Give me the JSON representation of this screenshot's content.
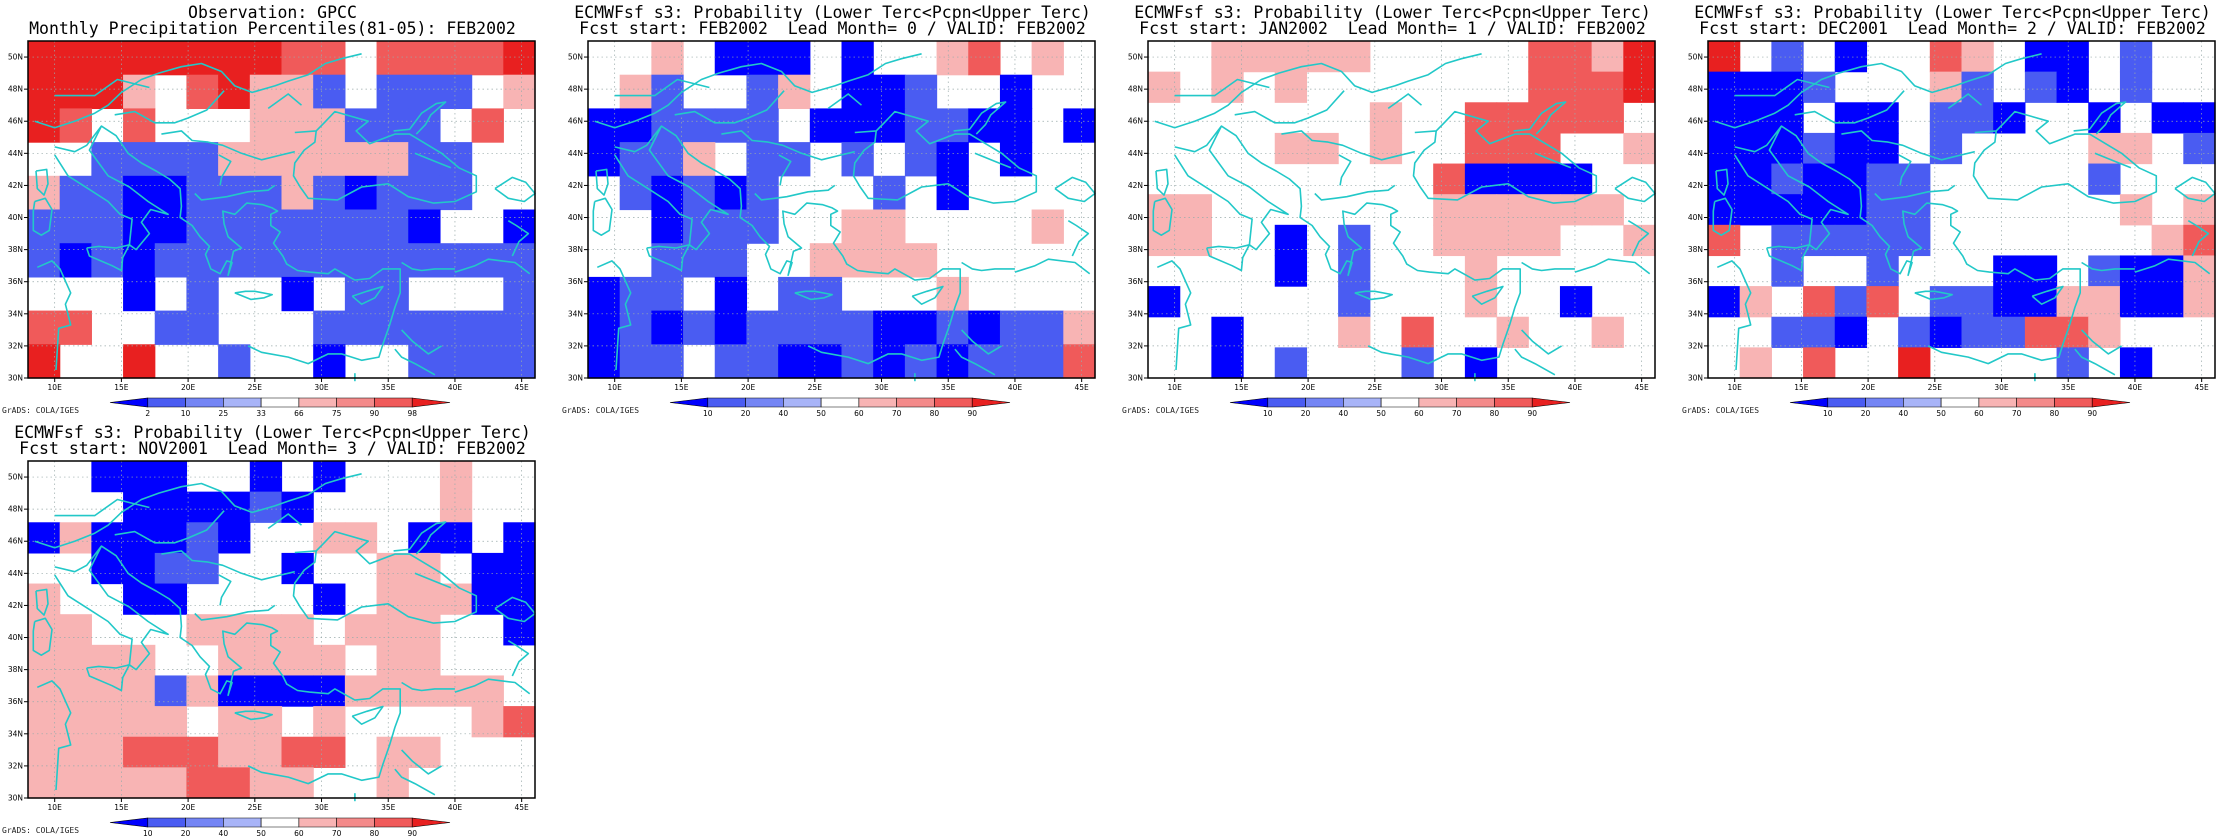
{
  "lon_ticks": [
    "10E",
    "15E",
    "20E",
    "25E",
    "30E",
    "35E",
    "40E",
    "45E"
  ],
  "lat_ticks": [
    "50N",
    "48N",
    "46N",
    "44N",
    "42N",
    "40N",
    "38N",
    "36N",
    "34N",
    "32N",
    "30N"
  ],
  "grads_credit": "GrADS: COLA/IGES",
  "palette": {
    "map_outline": "#22c8c8",
    "blue_scale": [
      "#0000ff",
      "#4a5cf2",
      "#7485f5",
      "#a8b4f8"
    ],
    "red_scale": [
      "#f8b4b4",
      "#f48a8a",
      "#f05a5a",
      "#e82020"
    ],
    "neutral": "#ffffff"
  },
  "panels": [
    {
      "title1": "Observation: GPCC",
      "title2": "Monthly Precipitation Percentiles(81-05): FEB2002",
      "colorbar_labels": [
        "2",
        "10",
        "25",
        "33",
        "66",
        "75",
        "90",
        "98"
      ],
      "grid": [
        "RRRRRRRRrr.rrrrR",
        "RRRp.rRppb.bbb.p",
        "Rr.r...pppbbb.r.",
        "..bbbbppppppbb..",
        "pbbBBbbbpbBbbb..",
        "bbbBBbbbbbbbB..B",
        "bBbBbbbbbbbbbbbb",
        "...B.b..B.bb...b",
        "rr..bb...bbbbbbb",
        "R..R..b..B..bbbb"
      ]
    },
    {
      "title1": "ECMWFsf s3: Probability (Lower Terc<Pcpn<Upper Terc)",
      "title2": "Fcst start: FEB2002  Lead Month= 0 / VALID: FEB2002",
      "colorbar_labels": [
        "10",
        "20",
        "40",
        "50",
        "60",
        "70",
        "80",
        "90"
      ],
      "grid": [
        "..p.BBB.B..pr.p.",
        ".pb..bp.BBb..B..",
        "BBbbbb.BBBbbBB.B",
        "Bbbp.bb.b.bB.B..",
        ".bBbBb...b.B....",
        "..Bbbb..pp....p.",
        "..bbb..pppp.....",
        "Bbb.B.bb...p....",
        "BbBbBbbbbBBbBbbp",
        "Bbb.bbBBbBbBbbbr"
      ]
    },
    {
      "title1": "ECMWFsf s3: Probability (Lower Terc<Pcpn<Upper Terc)",
      "title2": "Fcst start: JAN2002  Lead Month= 1 / VALID: FEB2002",
      "colorbar_labels": [
        "10",
        "20",
        "40",
        "50",
        "60",
        "70",
        "80",
        "90"
      ],
      "grid": [
        "..ppppp.....rrpR",
        "p.p.p.......rrrR",
        ".......p..rrrrr.",
        "....pp.p..rrr..p",
        ".........rBBBB..",
        "pp.......pppppp.",
        "pp..B.b..pppp..p",
        "....B.b...p.....",
        "B.....b...p..B..",
        "..B...p.r..p..p.",
        "..B.b...b.B....."
      ]
    },
    {
      "title1": "ECMWFsf s3: Probability (Lower Terc<Pcpn<Upper Terc)",
      "title2": "Fcst start: DEC2001  Lead Month= 2 / VALID: FEB2002",
      "colorbar_labels": [
        "10",
        "20",
        "40",
        "50",
        "60",
        "70",
        "80",
        "90"
      ],
      "grid": [
        "R.b.B..rp.BB.b..",
        "BBBb...pb.bB.b..",
        "BBB.BB.bbB..B.BB",
        "BBBbBB.b....pp.b",
        "BBbBBbb.....b...",
        "BBBBBbb......p.p",
        "r.bbbbb.......pr",
        "..b..b...BB.bBBp",
        "Bp.rbr.bbBBppBBp",
        "..bbB.bBbbrrp...",
        ".p.r..R....b.B.."
      ]
    },
    {
      "title1": "ECMWFsf s3: Probability (Lower Terc<Pcpn<Upper Terc)",
      "title2": "Fcst start: NOV2001  Lead Month= 3 / VALID: FEB2002",
      "colorbar_labels": [
        "10",
        "20",
        "40",
        "50",
        "60",
        "70",
        "80",
        "90"
      ],
      "grid": [
        "..BBB..B.B...p..",
        "...BBBBbB....p..",
        "BpBBBbB..pp.BB.B",
        "..BBbb..B..pp.BB",
        "p..BB....B.pppBB",
        "pp...pppp.ppp..B",
        "pppp..pppp.pp...",
        "ppppbpBBBBppppp.",
        "ppppp.pp.p....pr",
        "ppprrrpprr.pp...",
        "ppppprrpp..p...."
      ]
    }
  ]
}
